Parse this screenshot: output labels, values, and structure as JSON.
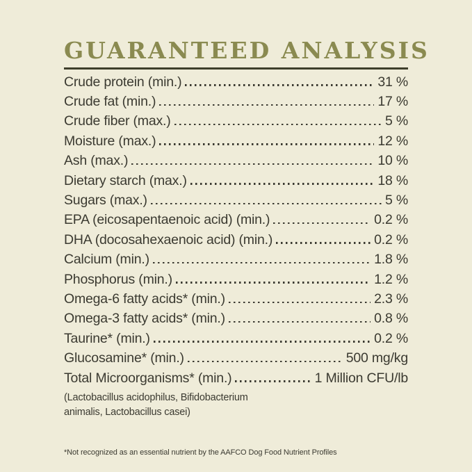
{
  "title": "GUARANTEED ANALYSIS",
  "rows": [
    {
      "label": "Crude protein (min.)",
      "value": "31 %"
    },
    {
      "label": "Crude fat (min.)",
      "value": "17 %"
    },
    {
      "label": "Crude fiber (max.)",
      "value": "5 %"
    },
    {
      "label": "Moisture (max.)",
      "value": "12 %"
    },
    {
      "label": "Ash (max.)",
      "value": "10 %"
    },
    {
      "label": "Dietary starch (max.)",
      "value": "18 %"
    },
    {
      "label": "Sugars (max.)",
      "value": "5 %"
    },
    {
      "label": "EPA (eicosapentaenoic acid) (min.)",
      "value": "0.2 %"
    },
    {
      "label": "DHA (docosahexaenoic acid) (min.)",
      "value": "0.2 %"
    },
    {
      "label": "Calcium (min.)",
      "value": "1.8 %"
    },
    {
      "label": "Phosphorus (min.)",
      "value": "1.2 %"
    },
    {
      "label": "Omega-6 fatty acids* (min.)",
      "value": "2.3 %"
    },
    {
      "label": "Omega-3 fatty acids* (min.)",
      "value": "0.8 %"
    },
    {
      "label": "Taurine* (min.)",
      "value": "0.2 %"
    },
    {
      "label": "Glucosamine* (min.)",
      "value": "500 mg/kg"
    },
    {
      "label": "Total Microorganisms* (min.)",
      "value": "1 Million CFU/lb"
    }
  ],
  "microorganisms_note": {
    "line1": "(Lactobacillus acidophilus, Bifidobacterium",
    "line2": "animalis, Lactobacillus casei)"
  },
  "footnote": "*Not recognized as an essential nutrient by the AAFCO Dog Food Nutrient Profiles",
  "colors": {
    "background": "#efecd9",
    "heading": "#8a8a50",
    "rule": "#3e3e2b",
    "text": "#3b3a31"
  }
}
